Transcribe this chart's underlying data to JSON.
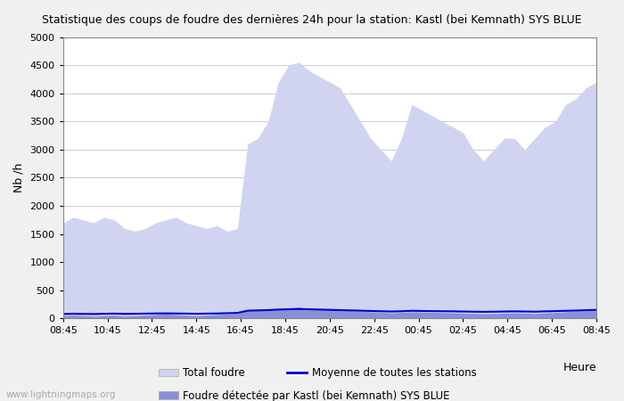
{
  "title": "Statistique des coups de foudre des dernières 24h pour la station: Kastl (bei Kemnath) SYS BLUE",
  "ylabel": "Nb /h",
  "xlabel": "Heure",
  "watermark": "www.lightningmaps.org",
  "ylim": [
    0,
    5000
  ],
  "yticks": [
    0,
    500,
    1000,
    1500,
    2000,
    2500,
    3000,
    3500,
    4000,
    4500,
    5000
  ],
  "xtick_labels": [
    "08:45",
    "10:45",
    "12:45",
    "14:45",
    "16:45",
    "18:45",
    "20:45",
    "22:45",
    "00:45",
    "02:45",
    "04:45",
    "06:45",
    "08:45"
  ],
  "color_total": "#d0d4f0",
  "color_detected": "#8890d8",
  "color_mean_line": "#0000cc",
  "legend_labels": [
    "Total foudre",
    "Moyenne de toutes les stations",
    "Foudre détectée par Kastl (bei Kemnath) SYS BLUE"
  ],
  "bg_color": "#f0f0f0",
  "plot_bg_color": "#ffffff",
  "total_foudre": [
    1700,
    1800,
    1750,
    1700,
    1800,
    1750,
    1600,
    1550,
    1600,
    1700,
    1750,
    1800,
    1700,
    1650,
    1600,
    1650,
    1550,
    1600,
    3100,
    3200,
    3500,
    4200,
    4500,
    4550,
    4400,
    4300,
    4200,
    4100,
    3800,
    3500,
    3200,
    3000,
    2800,
    3200,
    3800,
    3700,
    3600,
    3500,
    3400,
    3300,
    3000,
    2800,
    3000,
    3200,
    3200,
    3000,
    3200,
    3400,
    3500,
    3800,
    3900,
    4100,
    4200
  ],
  "detected_foudre": [
    50,
    60,
    50,
    40,
    50,
    60,
    40,
    50,
    60,
    70,
    80,
    70,
    60,
    50,
    60,
    70,
    80,
    90,
    150,
    160,
    170,
    180,
    190,
    200,
    180,
    170,
    160,
    150,
    140,
    130,
    120,
    110,
    100,
    110,
    120,
    115,
    110,
    105,
    100,
    95,
    90,
    85,
    90,
    95,
    100,
    95,
    90,
    100,
    110,
    120,
    130,
    140,
    150
  ],
  "mean_line": [
    80,
    85,
    82,
    80,
    85,
    88,
    82,
    85,
    88,
    90,
    92,
    90,
    88,
    85,
    88,
    90,
    95,
    100,
    140,
    145,
    150,
    160,
    165,
    170,
    165,
    160,
    155,
    150,
    145,
    140,
    135,
    130,
    125,
    130,
    138,
    135,
    132,
    130,
    128,
    125,
    122,
    120,
    122,
    125,
    128,
    125,
    122,
    128,
    132,
    138,
    142,
    148,
    155
  ]
}
